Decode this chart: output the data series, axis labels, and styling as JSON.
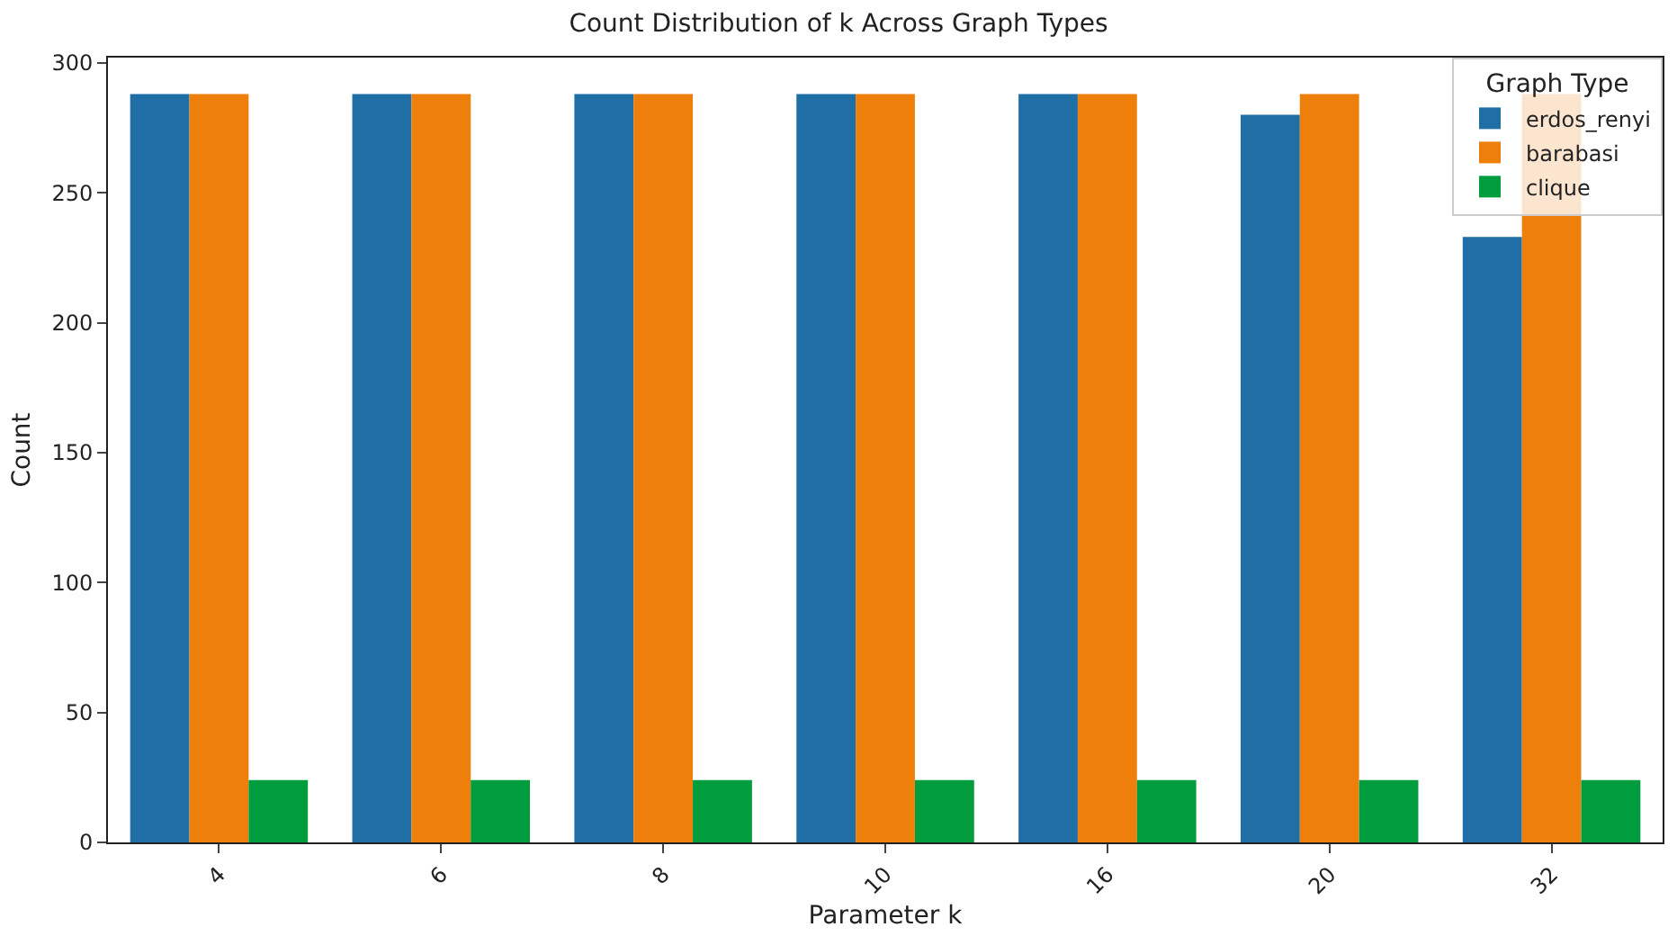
{
  "chart_data": {
    "type": "bar",
    "title": "Count Distribution of k Across Graph Types",
    "xlabel": "Parameter k",
    "ylabel": "Count",
    "legend_title": "Graph Type",
    "categories": [
      "4",
      "6",
      "8",
      "10",
      "16",
      "20",
      "32"
    ],
    "series": [
      {
        "name": "erdos_renyi",
        "color": "#1f6fa6",
        "values": [
          288,
          288,
          288,
          288,
          288,
          280,
          233
        ]
      },
      {
        "name": "barabasi",
        "color": "#ef7f0b",
        "values": [
          288,
          288,
          288,
          288,
          288,
          288,
          288
        ]
      },
      {
        "name": "clique",
        "color": "#009c3d",
        "values": [
          24,
          24,
          24,
          24,
          24,
          24,
          24
        ]
      }
    ],
    "ylim": [
      0,
      302
    ],
    "yticks": [
      0,
      50,
      100,
      150,
      200,
      250,
      300
    ],
    "legend": "top right"
  }
}
